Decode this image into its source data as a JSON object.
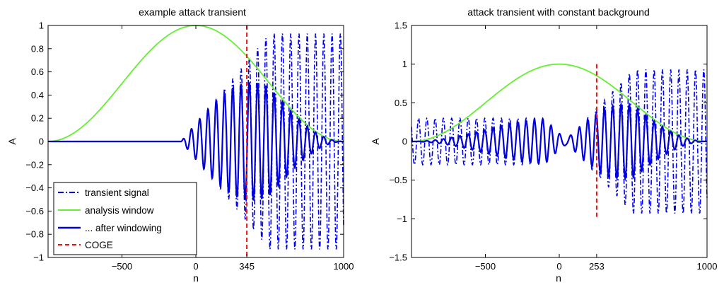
{
  "chart_data": [
    {
      "type": "line",
      "title": "example attack transient",
      "xlabel": "n",
      "ylabel": "A",
      "xlim": [
        -1000,
        1000
      ],
      "ylim": [
        -1,
        1
      ],
      "xticks": [
        "−500",
        "0",
        "345",
        "1000"
      ],
      "xtick_values": [
        -500,
        0,
        345,
        1000
      ],
      "yticks": [
        "−1",
        "−0.8",
        "−0.6",
        "−0.4",
        "−0.2",
        "0",
        "0.2",
        "0.4",
        "0.6",
        "0.8",
        "1"
      ],
      "ytick_values": [
        -1,
        -0.8,
        -0.6,
        -0.4,
        -0.2,
        0,
        0.2,
        0.4,
        0.6,
        0.8,
        1
      ],
      "legend": {
        "placement": "bottom-left",
        "entries": [
          "transient signal",
          "analysis window",
          "... after windowing",
          "COGE"
        ]
      },
      "series": [
        {
          "name": "transient signal",
          "kind": "transient",
          "onset": -100,
          "ramp": 600,
          "amplitude": 0.93,
          "period": 56,
          "background": 0,
          "color": "#0000ee",
          "style": "dashdot"
        },
        {
          "name": "analysis window",
          "kind": "hann",
          "x_range": [
            -1000,
            1000
          ],
          "peak": 1,
          "color": "#66ee33",
          "style": "solid"
        },
        {
          "name": "... after windowing",
          "kind": "windowed",
          "color": "#0000dd",
          "style": "solid"
        },
        {
          "name": "COGE",
          "kind": "vline",
          "x": 345,
          "y_range": [
            -1,
            1
          ],
          "color": "#ee1111",
          "style": "dashed"
        }
      ],
      "color_transient": "#0000ee",
      "color_window": "#66ee33",
      "color_coge": "#ee1111"
    },
    {
      "type": "line",
      "title": "attack transient with constant background",
      "xlabel": "n",
      "ylabel": "A",
      "xlim": [
        -1000,
        1000
      ],
      "ylim": [
        -1.5,
        1.5
      ],
      "xticks": [
        "−500",
        "0",
        "253",
        "1000"
      ],
      "xtick_values": [
        -500,
        0,
        253,
        1000
      ],
      "yticks": [
        "−1.5",
        "−1",
        "−0.5",
        "0",
        "0.5",
        "1",
        "1.5"
      ],
      "ytick_values": [
        -1.5,
        -1,
        -0.5,
        0,
        0.5,
        1,
        1.5
      ],
      "series": [
        {
          "name": "transient signal",
          "kind": "transient",
          "onset": -100,
          "ramp": 600,
          "amplitude": 0.93,
          "period": 56,
          "background": 0.3,
          "color": "#0000ee",
          "style": "dashdot"
        },
        {
          "name": "analysis window",
          "kind": "hann",
          "x_range": [
            -1000,
            1000
          ],
          "peak": 1,
          "color": "#66ee33",
          "style": "solid"
        },
        {
          "name": "... after windowing",
          "kind": "windowed",
          "color": "#0000dd",
          "style": "solid"
        },
        {
          "name": "COGE",
          "kind": "vline",
          "x": 253,
          "y_range": [
            -1,
            1
          ],
          "color": "#ee1111",
          "style": "dashed"
        }
      ]
    }
  ]
}
